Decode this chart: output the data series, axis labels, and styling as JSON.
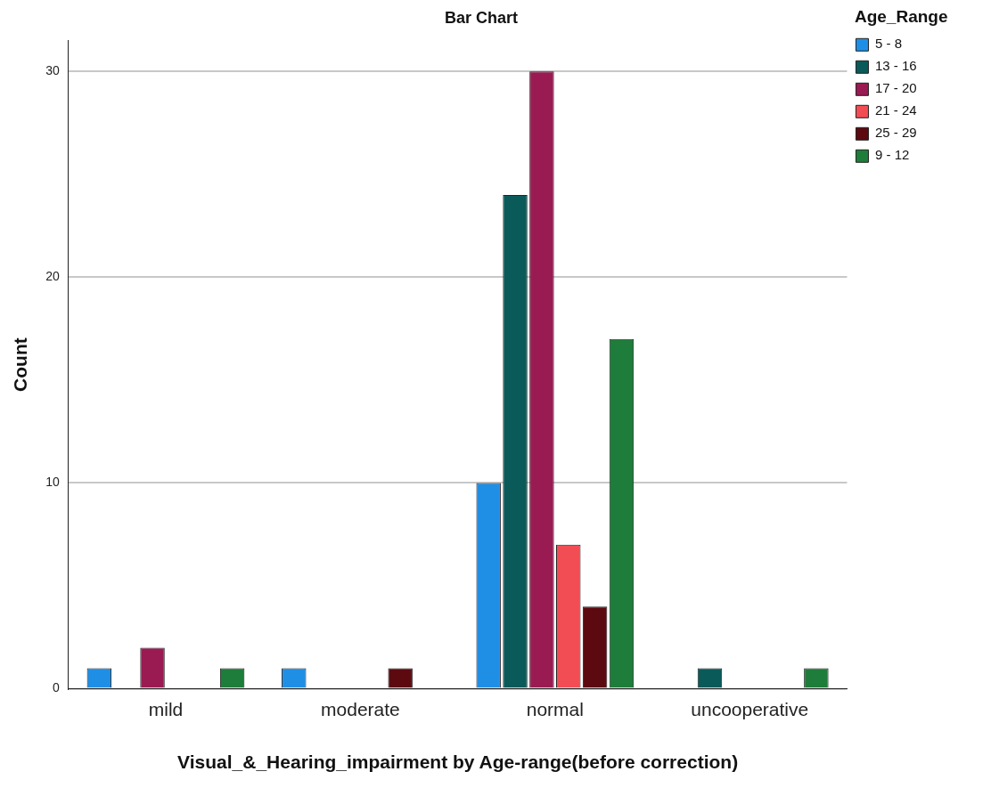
{
  "chart_data": {
    "type": "bar",
    "title": "Bar Chart",
    "xlabel": "Visual_&_Hearing_impairment by Age-range(before correction)",
    "ylabel": "Count",
    "legend_title": "Age_Range",
    "categories": [
      "mild",
      "moderate",
      "normal",
      "uncooperative"
    ],
    "series": [
      {
        "name": "5 - 8",
        "color": "#1f8fe6",
        "values": [
          1,
          1,
          10,
          null
        ]
      },
      {
        "name": "13 - 16",
        "color": "#0b5a5a",
        "values": [
          null,
          null,
          24,
          1
        ]
      },
      {
        "name": "17 - 20",
        "color": "#9a1a52",
        "values": [
          2,
          null,
          30,
          null
        ]
      },
      {
        "name": "21 - 24",
        "color": "#f24d55",
        "values": [
          null,
          null,
          7,
          null
        ]
      },
      {
        "name": "25 - 29",
        "color": "#5c0a10",
        "values": [
          null,
          1,
          4,
          null
        ]
      },
      {
        "name": "9 - 12",
        "color": "#1e7d3a",
        "values": [
          1,
          null,
          17,
          1
        ]
      }
    ],
    "ylim": [
      0,
      31.5
    ],
    "yticks": [
      0,
      10,
      20,
      30
    ],
    "grid": "y",
    "legend": "top right"
  }
}
